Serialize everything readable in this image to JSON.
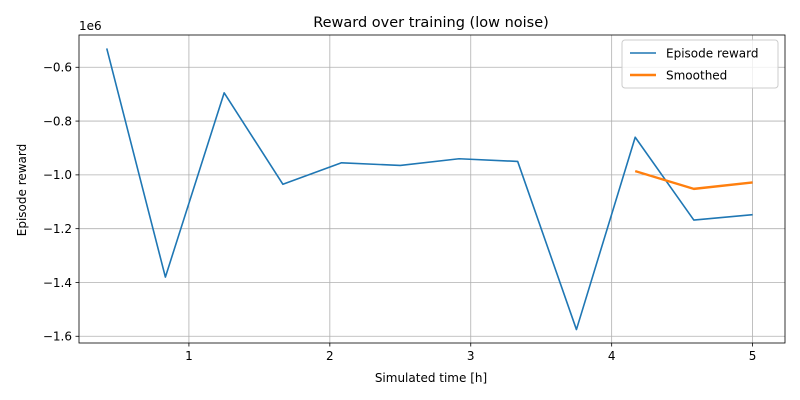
{
  "chart_data": {
    "type": "line",
    "title": "Reward over training (low noise)",
    "xlabel": "Simulated time [h]",
    "ylabel": "Episode reward",
    "y_offset_label": "1e6",
    "xlim": [
      0.22,
      5.23
    ],
    "ylim": [
      -1.625,
      -0.48
    ],
    "xticks": [
      1,
      2,
      3,
      4,
      5
    ],
    "xtick_labels": [
      "1",
      "2",
      "3",
      "4",
      "5"
    ],
    "yticks": [
      -1.6,
      -1.4,
      -1.2,
      -1.0,
      -0.8,
      -0.6
    ],
    "ytick_labels": [
      "−1.6",
      "−1.4",
      "−1.2",
      "−1.0",
      "−0.8",
      "−0.6"
    ],
    "grid": true,
    "legend_position": "top-right",
    "series": [
      {
        "name": "Episode reward",
        "color": "#1f77b4",
        "x": [
          0.417,
          0.833,
          1.25,
          1.667,
          2.083,
          2.5,
          2.917,
          3.333,
          3.75,
          4.167,
          4.583,
          5.0
        ],
        "y": [
          -0.53,
          -1.38,
          -0.695,
          -1.035,
          -0.955,
          -0.965,
          -0.94,
          -0.95,
          -1.575,
          -0.86,
          -1.168,
          -1.148
        ]
      },
      {
        "name": "Smoothed",
        "color": "#ff7f0e",
        "x": [
          4.167,
          4.583,
          5.0
        ],
        "y": [
          -0.986,
          -1.052,
          -1.028
        ]
      }
    ]
  }
}
